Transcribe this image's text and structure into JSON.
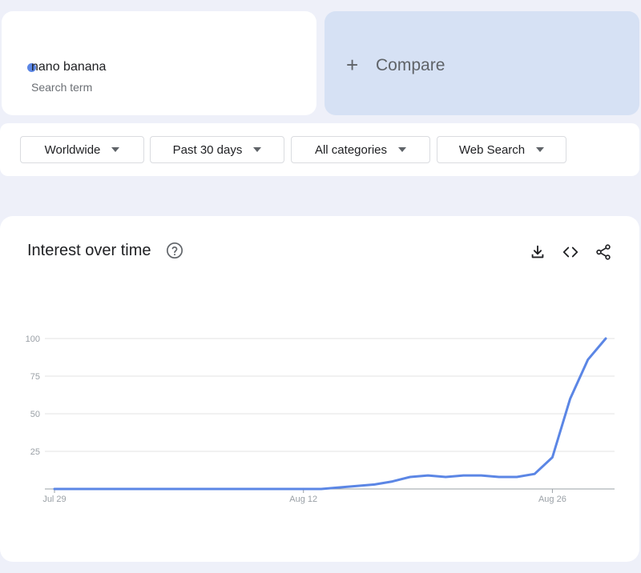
{
  "search_term": {
    "name": "nano banana",
    "subtitle": "Search term",
    "color": "#5b86e5"
  },
  "compare": {
    "label": "Compare",
    "icon": "plus-icon"
  },
  "filters": [
    {
      "label": "Worldwide"
    },
    {
      "label": "Past 30 days"
    },
    {
      "label": "All categories"
    },
    {
      "label": "Web Search"
    }
  ],
  "chart_card": {
    "title": "Interest over time",
    "icons": [
      "help-icon",
      "download-icon",
      "embed-icon",
      "share-icon"
    ]
  },
  "chart_data": {
    "type": "line",
    "title": "Interest over time",
    "xlabel": "",
    "ylabel": "",
    "ylim": [
      0,
      100
    ],
    "y_ticks": [
      25,
      50,
      75,
      100
    ],
    "x_tick_labels": [
      {
        "label": "Jul 29",
        "day_index": 0
      },
      {
        "label": "Aug 12",
        "day_index": 14
      },
      {
        "label": "Aug 26",
        "day_index": 28
      }
    ],
    "grid": true,
    "series": [
      {
        "color": "#5b86e5",
        "values": [
          0,
          0,
          0,
          0,
          0,
          0,
          0,
          0,
          0,
          0,
          0,
          0,
          0,
          0,
          0,
          0,
          1,
          2,
          3,
          5,
          8,
          9,
          8,
          9,
          9,
          8,
          8,
          10,
          21,
          60,
          86,
          100
        ]
      }
    ]
  }
}
